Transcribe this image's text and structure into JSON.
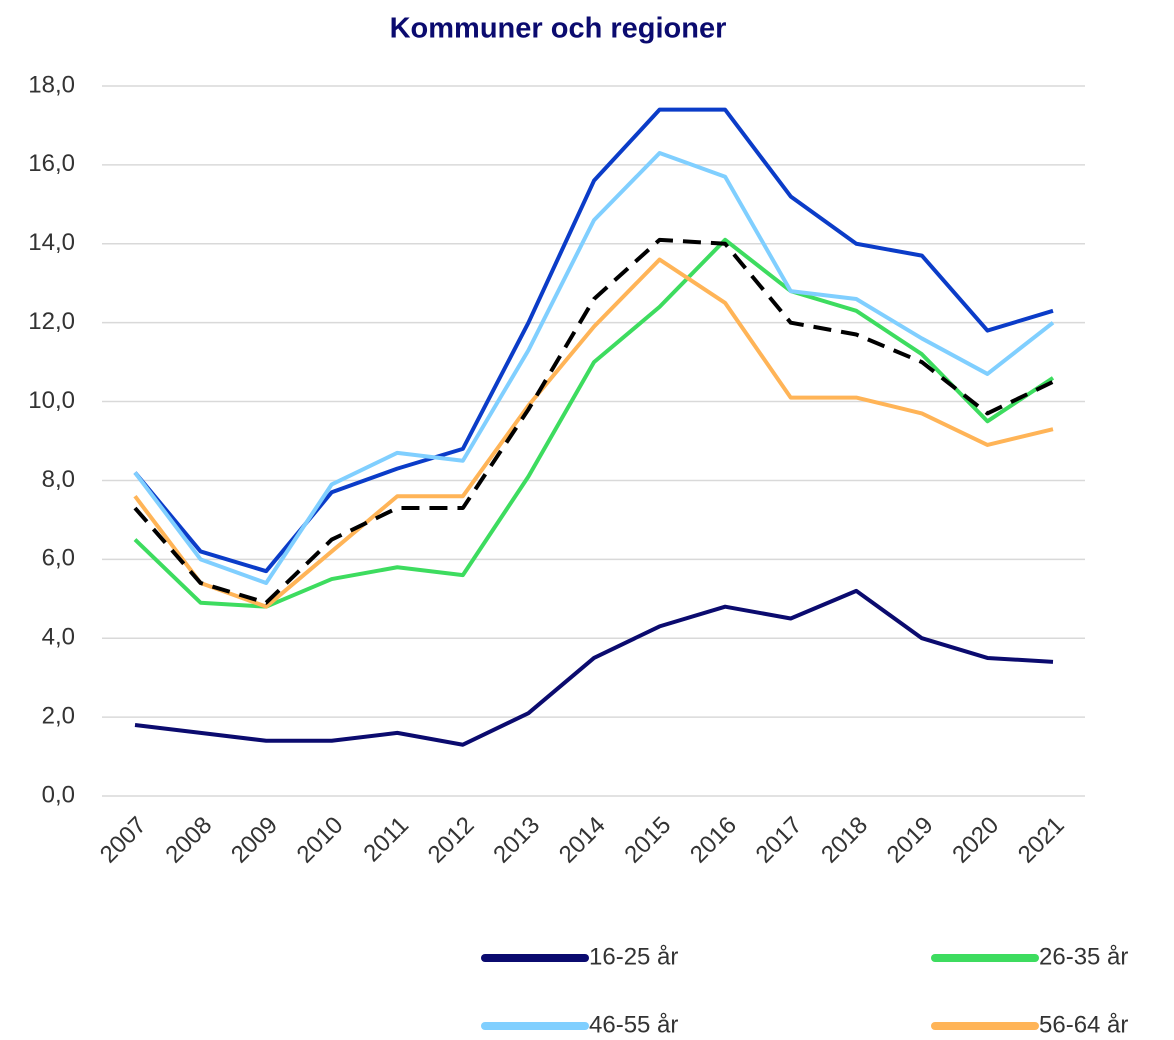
{
  "chart_data": {
    "type": "line",
    "title": "Kommuner och regioner",
    "categories": [
      "2007",
      "2008",
      "2009",
      "2010",
      "2011",
      "2012",
      "2013",
      "2014",
      "2015",
      "2016",
      "2017",
      "2018",
      "2019",
      "2020",
      "2021"
    ],
    "series": [
      {
        "name": "16-25 år",
        "color": "#0b0b6f",
        "values": [
          1.8,
          1.6,
          1.4,
          1.4,
          1.6,
          1.3,
          2.1,
          3.5,
          4.3,
          4.8,
          4.5,
          5.2,
          4.0,
          3.5,
          3.4
        ]
      },
      {
        "name": "26-35 år",
        "color": "#3ddc5f",
        "values": [
          6.5,
          4.9,
          4.8,
          5.5,
          5.8,
          5.6,
          8.1,
          11.0,
          12.4,
          14.1,
          12.8,
          12.3,
          11.2,
          9.5,
          10.6
        ]
      },
      {
        "color": "#0b3cc8",
        "values": [
          8.2,
          6.2,
          5.7,
          7.7,
          8.3,
          8.8,
          12.0,
          15.6,
          17.4,
          17.4,
          15.2,
          14.0,
          13.7,
          11.8,
          12.3
        ]
      },
      {
        "name": "46-55 år",
        "color": "#80cfff",
        "values": [
          8.2,
          6.0,
          5.4,
          7.9,
          8.7,
          8.5,
          11.3,
          14.6,
          16.3,
          15.7,
          12.8,
          12.6,
          11.6,
          10.7,
          12.0
        ]
      },
      {
        "name": "56-64 år",
        "color": "#ffb457",
        "values": [
          7.6,
          5.4,
          4.8,
          6.2,
          7.6,
          7.6,
          9.9,
          11.9,
          13.6,
          12.5,
          10.1,
          10.1,
          9.7,
          8.9,
          9.3
        ]
      },
      {
        "color": "#000000",
        "dashed": true,
        "values": [
          7.3,
          5.4,
          4.9,
          6.5,
          7.3,
          7.3,
          9.8,
          12.6,
          14.1,
          14.0,
          12.0,
          11.7,
          11.0,
          9.7,
          10.5
        ]
      }
    ],
    "ylim": [
      0,
      18
    ],
    "yticks": [
      {
        "value": 0,
        "label": "0,0"
      },
      {
        "value": 2,
        "label": "2,0"
      },
      {
        "value": 4,
        "label": "4,0"
      },
      {
        "value": 6,
        "label": "6,0"
      },
      {
        "value": 8,
        "label": "8,0"
      },
      {
        "value": 10,
        "label": "10,0"
      },
      {
        "value": 12,
        "label": "12,0"
      },
      {
        "value": 14,
        "label": "14,0"
      },
      {
        "value": 16,
        "label": "16,0"
      },
      {
        "value": 18,
        "label": "18,0"
      }
    ],
    "grid": true
  }
}
